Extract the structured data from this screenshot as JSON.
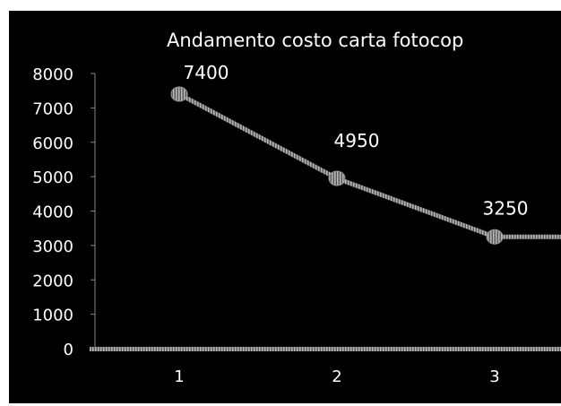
{
  "chart_data": {
    "type": "line",
    "title": "Andamento  costo  carta fotocop",
    "xlabel": "",
    "ylabel": "",
    "categories": [
      "1",
      "2",
      "3"
    ],
    "series": [
      {
        "values": [
          7400,
          4950,
          3250
        ]
      }
    ],
    "data_labels": [
      "7400",
      "4950",
      "3250"
    ],
    "y_ticks": [
      "0",
      "1000",
      "2000",
      "3000",
      "4000",
      "5000",
      "6000",
      "7000",
      "8000"
    ],
    "ylim": [
      0,
      8000
    ],
    "grid": false,
    "legend": "none",
    "line_continues_past_edge": true,
    "colors": {
      "background": "#000000",
      "line": "#8a8a8a",
      "text": "#ffffff",
      "axis": "#888888"
    }
  }
}
